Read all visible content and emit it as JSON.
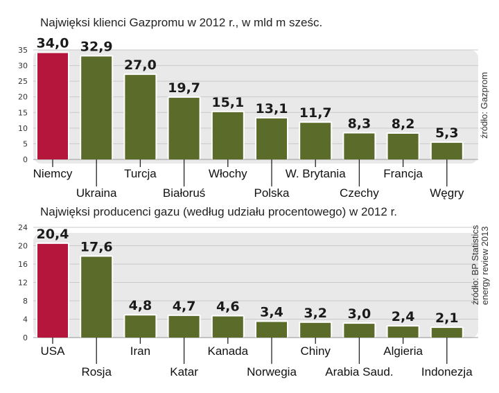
{
  "chart_data": [
    {
      "type": "bar",
      "title": "Najwięksi klienci Gazpromu w 2012 r., w mld m sześc.",
      "source": "źródło: Gazprom",
      "categories": [
        "Niemcy",
        "Ukraina",
        "Turcja",
        "Białoruś",
        "Włochy",
        "Polska",
        "W. Brytania",
        "Czechy",
        "Francja",
        "Węgry"
      ],
      "values": [
        34.0,
        32.9,
        27.0,
        19.7,
        15.1,
        13.1,
        11.7,
        8.3,
        8.2,
        5.3
      ],
      "value_labels": [
        "34,0",
        "32,9",
        "27,0",
        "19,7",
        "15,1",
        "13,1",
        "11,7",
        "8,3",
        "8,2",
        "5,3"
      ],
      "yticks": [
        "0",
        "5",
        "10",
        "15",
        "20",
        "25",
        "30",
        "35"
      ],
      "ylim": [
        0,
        35
      ],
      "colors": {
        "highlight": "#b5173c",
        "bar": "#5a6b2a",
        "panel": "#e9e9e9"
      }
    },
    {
      "type": "bar",
      "title": "Najwięksi producenci gazu (według udziału procentowego) w 2012 r.",
      "source": "źródło: BP Statistics energy review 2013",
      "source_lines": [
        "źródło: BP Statistics",
        "energy review 2013"
      ],
      "categories": [
        "USA",
        "Rosja",
        "Iran",
        "Katar",
        "Kanada",
        "Norwegia",
        "Chiny",
        "Arabia Saud.",
        "Algieria",
        "Indonezja"
      ],
      "values": [
        20.4,
        17.6,
        4.8,
        4.7,
        4.6,
        3.4,
        3.2,
        3.0,
        2.4,
        2.1
      ],
      "value_labels": [
        "20,4",
        "17,6",
        "4,8",
        "4,7",
        "4,6",
        "3,4",
        "3,2",
        "3,0",
        "2,4",
        "2,1"
      ],
      "yticks": [
        "0",
        "4",
        "8",
        "12",
        "16",
        "20",
        "24"
      ],
      "ylim": [
        0,
        24
      ],
      "colors": {
        "highlight": "#b5173c",
        "bar": "#5a6b2a",
        "panel": "#e9e9e9"
      }
    }
  ]
}
